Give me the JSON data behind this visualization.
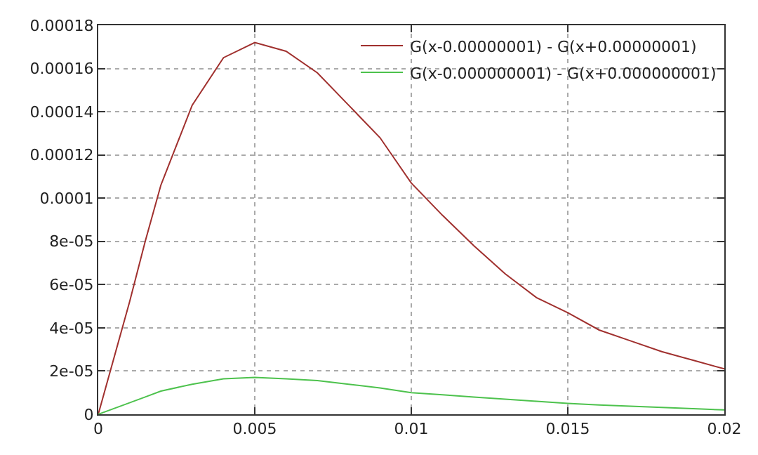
{
  "chart_data": {
    "type": "line",
    "x": [
      0,
      0.001,
      0.0015,
      0.002,
      0.003,
      0.004,
      0.005,
      0.006,
      0.007,
      0.008,
      0.009,
      0.01,
      0.011,
      0.012,
      0.013,
      0.014,
      0.015,
      0.016,
      0.017,
      0.018,
      0.019,
      0.02
    ],
    "series": [
      {
        "name": "G(x-0.00000001) - G(x+0.00000001)",
        "color": "#a0302e",
        "values": [
          0,
          5.2e-05,
          8e-05,
          0.000106,
          0.000143,
          0.000165,
          0.000172,
          0.000168,
          0.000158,
          0.000143,
          0.000128,
          0.000107,
          9.2e-05,
          7.8e-05,
          6.5e-05,
          5.4e-05,
          4.7e-05,
          3.9e-05,
          3.4e-05,
          2.9e-05,
          2.5e-05,
          2.1e-05
        ]
      },
      {
        "name": "G(x-0.000000001) - G(x+0.000000001)",
        "color": "#4dc24d",
        "values": [
          0,
          5.3e-06,
          8e-06,
          1.07e-05,
          1.39e-05,
          1.64e-05,
          1.71e-05,
          1.64e-05,
          1.56e-05,
          1.39e-05,
          1.22e-05,
          1e-05,
          9e-06,
          8e-06,
          7e-06,
          6e-06,
          5e-06,
          4.3e-06,
          3.7e-06,
          3.2e-06,
          2.6e-06,
          2e-06
        ]
      }
    ],
    "xlim": [
      0,
      0.02
    ],
    "xticks": [
      0,
      0.005,
      0.01,
      0.015,
      0.02
    ],
    "ylim": [
      0,
      0.00018
    ],
    "yticks": [
      0,
      {
        "value": 2e-05,
        "label": "2e-05"
      },
      {
        "value": 4e-05,
        "label": "4e-05"
      },
      {
        "value": 6e-05,
        "label": "6e-05"
      },
      {
        "value": 8e-05,
        "label": "8e-05"
      },
      0.0001,
      0.00012,
      0.00014,
      0.00016,
      0.00018
    ],
    "grid": true,
    "legend": "top right",
    "line_style": "solid",
    "marker": "none"
  }
}
